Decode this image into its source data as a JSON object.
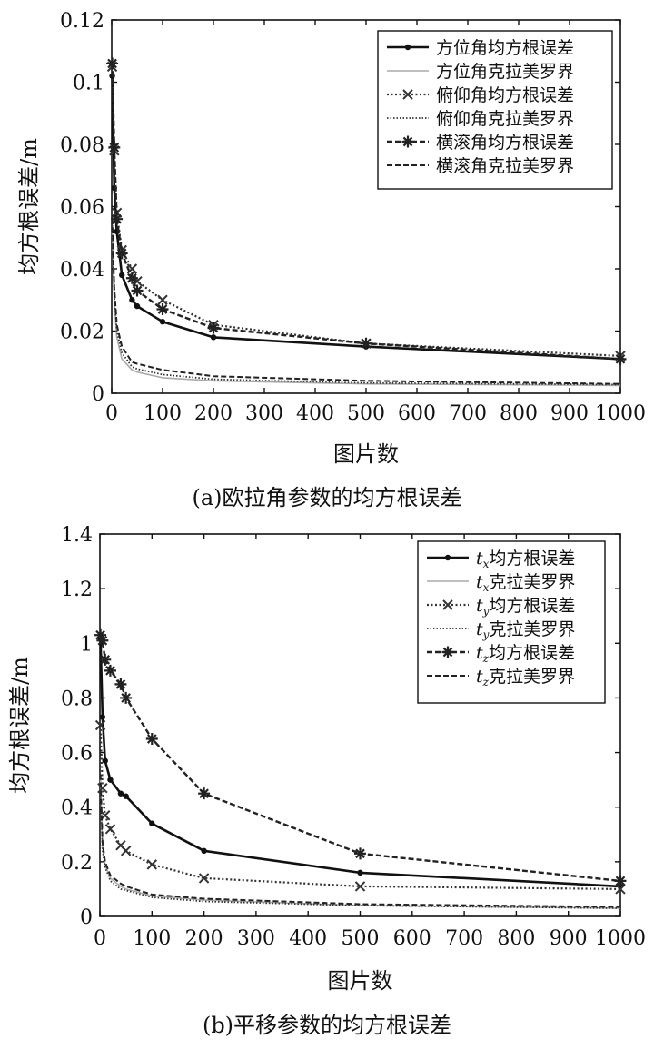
{
  "chart_data": [
    {
      "type": "line",
      "caption": "(a)欧拉角参数的均方根误差",
      "xlabel": "图片数",
      "ylabel": "均方根误差/m",
      "xlim": [
        0,
        1000
      ],
      "ylim": [
        0,
        0.12
      ],
      "xticks": [
        0,
        100,
        200,
        300,
        400,
        500,
        600,
        700,
        800,
        900,
        1000
      ],
      "yticks": [
        0,
        0.02,
        0.04,
        0.06,
        0.08,
        0.1,
        0.12
      ],
      "ytick_labels": [
        "0",
        "0.02",
        "0.04",
        "0.06",
        "0.08",
        "0.1",
        "0.12"
      ],
      "legend_position": "top-right",
      "grid": false,
      "series": [
        {
          "name": "方位角均方根误差",
          "style": "solid-dot",
          "x": [
            1,
            5,
            10,
            20,
            40,
            50,
            100,
            200,
            500,
            1000
          ],
          "y": [
            0.102,
            0.066,
            0.052,
            0.038,
            0.03,
            0.028,
            0.023,
            0.018,
            0.015,
            0.011
          ]
        },
        {
          "name": "方位角克拉美罗界",
          "style": "solid-light",
          "x": [
            1,
            5,
            10,
            20,
            40,
            50,
            100,
            200,
            500,
            1000
          ],
          "y": [
            0.052,
            0.03,
            0.018,
            0.011,
            0.0075,
            0.0068,
            0.005,
            0.004,
            0.003,
            0.0025
          ]
        },
        {
          "name": "俯仰角均方根误差",
          "style": "dotted-x",
          "x": [
            1,
            5,
            10,
            20,
            40,
            50,
            100,
            200,
            500,
            1000
          ],
          "y": [
            0.105,
            0.078,
            0.058,
            0.046,
            0.04,
            0.036,
            0.03,
            0.022,
            0.016,
            0.012
          ]
        },
        {
          "name": "俯仰角克拉美罗界",
          "style": "dotted",
          "x": [
            1,
            5,
            10,
            20,
            40,
            50,
            100,
            200,
            500,
            1000
          ],
          "y": [
            0.055,
            0.032,
            0.02,
            0.013,
            0.0085,
            0.0078,
            0.006,
            0.0045,
            0.0033,
            0.0028
          ]
        },
        {
          "name": "横滚角均方根误差",
          "style": "dashed-star",
          "x": [
            1,
            5,
            10,
            20,
            40,
            50,
            100,
            200,
            500,
            1000
          ],
          "y": [
            0.106,
            0.079,
            0.056,
            0.045,
            0.037,
            0.033,
            0.027,
            0.021,
            0.016,
            0.011
          ]
        },
        {
          "name": "横滚角克拉美罗界",
          "style": "dashed",
          "x": [
            1,
            5,
            10,
            20,
            40,
            50,
            100,
            200,
            500,
            1000
          ],
          "y": [
            0.056,
            0.034,
            0.022,
            0.015,
            0.01,
            0.0095,
            0.0075,
            0.0055,
            0.004,
            0.003
          ]
        }
      ]
    },
    {
      "type": "line",
      "caption": "(b)平移参数的均方根误差",
      "xlabel": "图片数",
      "ylabel": "均方根误差/m",
      "xlim": [
        0,
        1000
      ],
      "ylim": [
        0,
        1.4
      ],
      "xticks": [
        0,
        100,
        200,
        300,
        400,
        500,
        600,
        700,
        800,
        900,
        1000
      ],
      "yticks": [
        0,
        0.2,
        0.4,
        0.6,
        0.8,
        1,
        1.2,
        1.4
      ],
      "ytick_labels": [
        "0",
        "0.2",
        "0.4",
        "0.6",
        "0.8",
        "1",
        "1.2",
        "1.4"
      ],
      "legend_position": "top-right",
      "grid": false,
      "series": [
        {
          "name": "t",
          "sub": "x",
          "suffix": "均方根误差",
          "style": "solid-dot",
          "x": [
            1,
            5,
            10,
            20,
            40,
            50,
            100,
            200,
            500,
            1000
          ],
          "y": [
            1.02,
            0.73,
            0.57,
            0.5,
            0.45,
            0.44,
            0.34,
            0.24,
            0.16,
            0.11
          ]
        },
        {
          "name": "t",
          "sub": "x",
          "suffix": "克拉美罗界",
          "style": "solid-light",
          "x": [
            1,
            5,
            10,
            20,
            40,
            50,
            100,
            200,
            500,
            1000
          ],
          "y": [
            0.5,
            0.26,
            0.19,
            0.14,
            0.11,
            0.1,
            0.075,
            0.06,
            0.04,
            0.03
          ]
        },
        {
          "name": "t",
          "sub": "y",
          "suffix": "均方根误差",
          "style": "dotted-x",
          "x": [
            1,
            5,
            10,
            20,
            40,
            50,
            100,
            200,
            500,
            1000
          ],
          "y": [
            0.7,
            0.47,
            0.37,
            0.32,
            0.26,
            0.24,
            0.19,
            0.14,
            0.11,
            0.1
          ]
        },
        {
          "name": "t",
          "sub": "y",
          "suffix": "克拉美罗界",
          "style": "dotted",
          "x": [
            1,
            5,
            10,
            20,
            40,
            50,
            100,
            200,
            500,
            1000
          ],
          "y": [
            0.45,
            0.24,
            0.18,
            0.13,
            0.1,
            0.095,
            0.07,
            0.055,
            0.04,
            0.03
          ]
        },
        {
          "name": "t",
          "sub": "z",
          "suffix": "均方根误差",
          "style": "dashed-star",
          "x": [
            1,
            5,
            10,
            20,
            40,
            50,
            100,
            200,
            500,
            1000
          ],
          "y": [
            1.03,
            1.01,
            0.94,
            0.9,
            0.85,
            0.8,
            0.65,
            0.45,
            0.23,
            0.13
          ]
        },
        {
          "name": "t",
          "sub": "z",
          "suffix": "克拉美罗界",
          "style": "dashed",
          "x": [
            1,
            5,
            10,
            20,
            40,
            50,
            100,
            200,
            500,
            1000
          ],
          "y": [
            0.52,
            0.27,
            0.2,
            0.15,
            0.12,
            0.11,
            0.08,
            0.065,
            0.045,
            0.035
          ]
        }
      ]
    }
  ]
}
